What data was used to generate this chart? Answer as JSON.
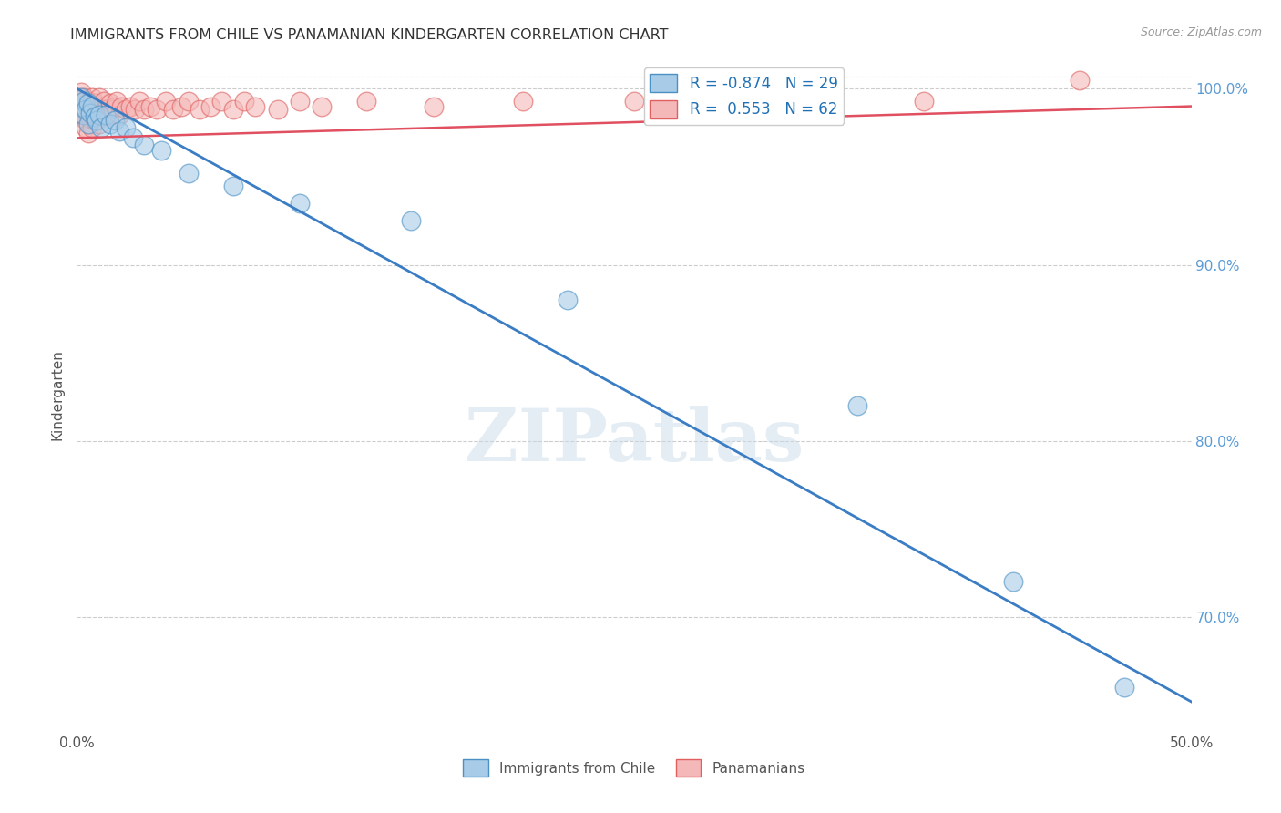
{
  "title": "IMMIGRANTS FROM CHILE VS PANAMANIAN KINDERGARTEN CORRELATION CHART",
  "source": "Source: ZipAtlas.com",
  "ylabel": "Kindergarten",
  "ylabel_right_ticks": [
    0.7,
    0.8,
    0.9,
    1.0
  ],
  "ylabel_right_labels": [
    "70.0%",
    "80.0%",
    "90.0%",
    "100.0%"
  ],
  "xmin": 0.0,
  "xmax": 0.5,
  "ymin": 0.635,
  "ymax": 1.018,
  "legend_blue_r": "-0.874",
  "legend_blue_n": "29",
  "legend_pink_r": "0.553",
  "legend_pink_n": "62",
  "legend_label_blue": "Immigrants from Chile",
  "legend_label_pink": "Panamanians",
  "blue_color": "#a8cce8",
  "pink_color": "#f5b8b8",
  "blue_edge_color": "#4a90c4",
  "pink_edge_color": "#e06060",
  "blue_line_color": "#3a7dc4",
  "pink_line_color": "#e05060",
  "blue_scatter_x": [
    0.001,
    0.002,
    0.003,
    0.003,
    0.004,
    0.005,
    0.005,
    0.006,
    0.007,
    0.008,
    0.009,
    0.01,
    0.011,
    0.013,
    0.015,
    0.017,
    0.019,
    0.022,
    0.025,
    0.03,
    0.038,
    0.05,
    0.07,
    0.1,
    0.15,
    0.22,
    0.35,
    0.42,
    0.47
  ],
  "blue_scatter_y": [
    0.99,
    0.995,
    0.985,
    0.993,
    0.988,
    0.992,
    0.98,
    0.986,
    0.99,
    0.984,
    0.982,
    0.985,
    0.978,
    0.985,
    0.98,
    0.982,
    0.976,
    0.978,
    0.972,
    0.968,
    0.965,
    0.952,
    0.945,
    0.935,
    0.925,
    0.88,
    0.82,
    0.72,
    0.66
  ],
  "pink_scatter_x": [
    0.001,
    0.001,
    0.002,
    0.002,
    0.002,
    0.003,
    0.003,
    0.003,
    0.004,
    0.004,
    0.005,
    0.005,
    0.005,
    0.006,
    0.006,
    0.007,
    0.007,
    0.007,
    0.008,
    0.008,
    0.009,
    0.009,
    0.01,
    0.01,
    0.011,
    0.012,
    0.012,
    0.013,
    0.014,
    0.015,
    0.016,
    0.017,
    0.018,
    0.019,
    0.02,
    0.022,
    0.024,
    0.026,
    0.028,
    0.03,
    0.033,
    0.036,
    0.04,
    0.043,
    0.047,
    0.05,
    0.055,
    0.06,
    0.065,
    0.07,
    0.075,
    0.08,
    0.09,
    0.1,
    0.11,
    0.13,
    0.16,
    0.2,
    0.25,
    0.3,
    0.38,
    0.45
  ],
  "pink_scatter_y": [
    0.995,
    0.988,
    0.993,
    0.985,
    0.998,
    0.99,
    0.983,
    0.995,
    0.988,
    0.978,
    0.993,
    0.985,
    0.975,
    0.99,
    0.983,
    0.995,
    0.988,
    0.978,
    0.992,
    0.982,
    0.99,
    0.985,
    0.995,
    0.98,
    0.988,
    0.985,
    0.993,
    0.988,
    0.985,
    0.992,
    0.988,
    0.99,
    0.993,
    0.985,
    0.99,
    0.988,
    0.99,
    0.988,
    0.993,
    0.988,
    0.99,
    0.988,
    0.993,
    0.988,
    0.99,
    0.993,
    0.988,
    0.99,
    0.993,
    0.988,
    0.993,
    0.99,
    0.988,
    0.993,
    0.99,
    0.993,
    0.99,
    0.993,
    0.993,
    0.993,
    0.993,
    1.005
  ],
  "blue_trend_x": [
    0.0,
    0.5
  ],
  "blue_trend_y": [
    1.0,
    0.652
  ],
  "pink_trend_x": [
    0.0,
    0.5
  ],
  "pink_trend_y": [
    0.972,
    0.99
  ],
  "watermark": "ZIPatlas",
  "background_color": "#ffffff",
  "grid_color": "#cccccc"
}
